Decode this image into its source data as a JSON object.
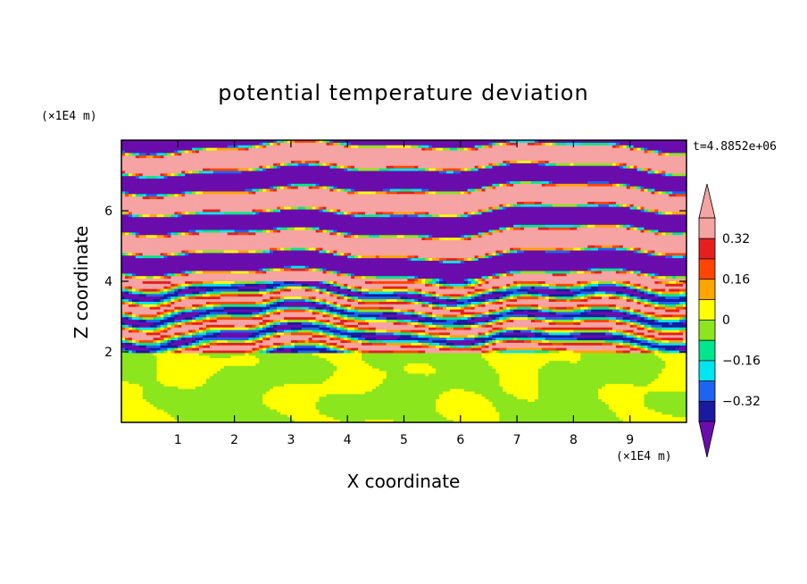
{
  "chart_data": {
    "type": "heatmap",
    "title": "potential temperature deviation",
    "xlabel": "X coordinate",
    "ylabel": "Z coordinate",
    "x_unit": "(×1E4 m)",
    "y_unit": "(×1E4 m)",
    "time_label": "t=4.8852e+06",
    "x_ticks": [
      "1",
      "2",
      "3",
      "4",
      "5",
      "6",
      "7",
      "8",
      "9"
    ],
    "y_ticks": [
      "2",
      "4",
      "6"
    ],
    "xlim": [
      0,
      10
    ],
    "ylim": [
      0,
      8
    ],
    "colorbar": {
      "tick_labels": [
        "0.32",
        "0.16",
        "0",
        "−0.16",
        "−0.32"
      ],
      "tick_values": [
        0.32,
        0.16,
        0,
        -0.16,
        -0.32
      ],
      "levels": [
        -0.4,
        -0.32,
        -0.24,
        -0.16,
        -0.08,
        0,
        0.08,
        0.16,
        0.24,
        0.32,
        0.4
      ],
      "colors": [
        "#6a0dad",
        "#1a1aa0",
        "#1e64f0",
        "#00e6f0",
        "#00e68c",
        "#8ce61e",
        "#ffff00",
        "#ffa500",
        "#ff4500",
        "#e61e1e",
        "#f5a3a3"
      ],
      "extend": "both"
    },
    "field_description_regions": [
      {
        "z_range": [
          0,
          2.0
        ],
        "dominant_values": [
          0.04,
          -0.04
        ]
      },
      {
        "z_range": [
          2.0,
          4.0
        ],
        "dominant_values": [
          -0.4,
          0.4,
          0.0,
          -0.12,
          0.12
        ]
      },
      {
        "z_range": [
          4.0,
          8.0
        ],
        "dominant_values": [
          0.4,
          -0.4
        ]
      }
    ]
  }
}
